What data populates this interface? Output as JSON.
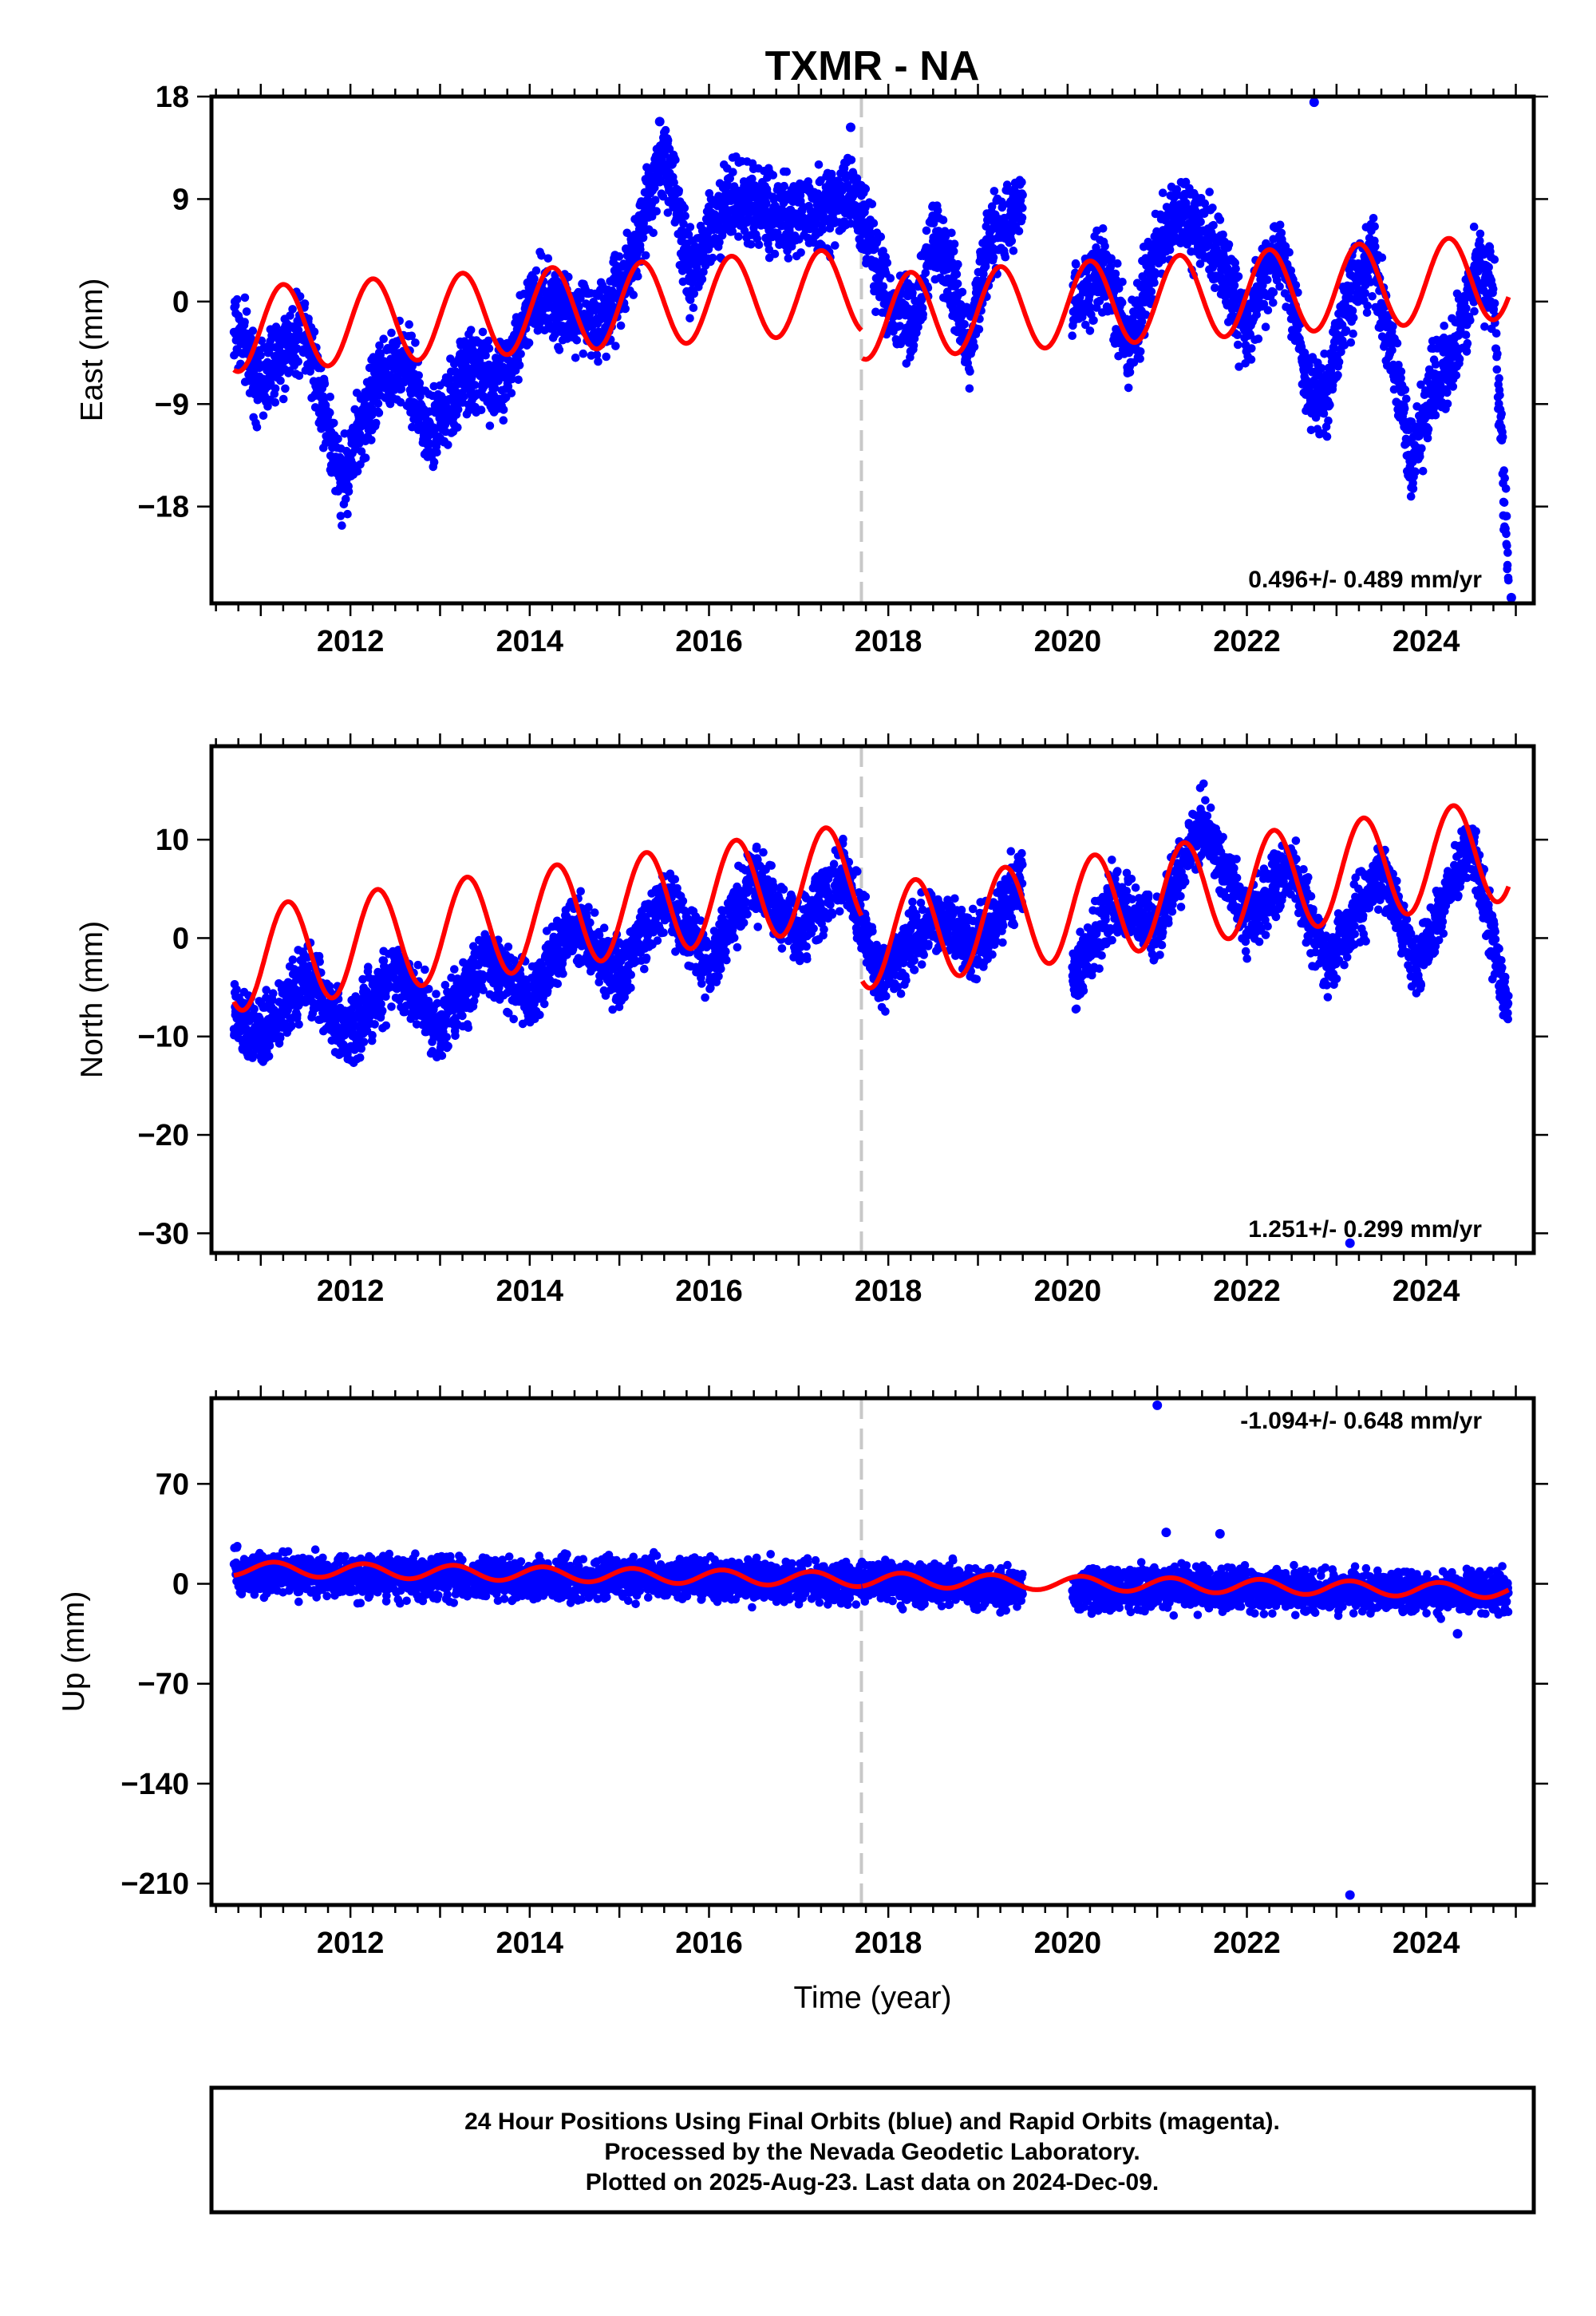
{
  "title": "TXMR - NA",
  "colors": {
    "final_orbits": "#0000ff",
    "model": "#ff0000",
    "event_line": "#c8c8c8",
    "frame": "#000000"
  },
  "event_line_year": 2017.7,
  "chart_data": [
    {
      "type": "scatter",
      "name": "east",
      "title": "",
      "ylabel": "East (mm)",
      "xlim": [
        2010.45,
        2025.2
      ],
      "ylim": [
        -26.5,
        18
      ],
      "yticks": [
        -18,
        -9,
        0,
        9,
        18
      ],
      "yticklabels": [
        "−18",
        "−9",
        "0",
        "9",
        "18"
      ],
      "xticks": [
        2012,
        2014,
        2016,
        2018,
        2020,
        2022,
        2024
      ],
      "xticklabels": [
        "2012",
        "2014",
        "2016",
        "2018",
        "2020",
        "2022",
        "2024"
      ],
      "show_xlabel": false,
      "xlabel": "Time (year)",
      "rate_label": "0.496+/- 0.489 mm/yr",
      "rate_position": "bottom-right",
      "anchors_x": [
        2010.7,
        2011.0,
        2011.5,
        2011.9,
        2012.3,
        2012.6,
        2012.9,
        2013.3,
        2013.7,
        2014.0,
        2014.3,
        2014.8,
        2015.1,
        2015.4,
        2015.5,
        2015.8,
        2016.1,
        2016.5,
        2016.9,
        2017.3,
        2017.6,
        2017.7,
        2018.0,
        2018.3,
        2018.5,
        2018.7,
        2018.9,
        2019.1,
        2019.5,
        2020.1,
        2020.4,
        2020.7,
        2020.9,
        2021.2,
        2021.5,
        2021.7,
        2022.0,
        2022.2,
        2022.4,
        2022.7,
        2022.9,
        2023.1,
        2023.4,
        2023.6,
        2023.85,
        2024.05,
        2024.3,
        2024.55,
        2024.75,
        2024.92
      ],
      "anchors_y": [
        -2,
        -7,
        -2,
        -16,
        -7,
        -5,
        -12,
        -6,
        -7,
        0,
        0,
        -2,
        3,
        11,
        13,
        2,
        8,
        9,
        7,
        8,
        9,
        8,
        0,
        -2,
        6,
        2,
        -4,
        5,
        9,
        0,
        3,
        -4,
        2,
        8,
        6,
        4,
        -3,
        2,
        4,
        -8,
        -8,
        0,
        4,
        -4,
        -15,
        -8,
        -5,
        3,
        1,
        -24
      ],
      "gaps": [
        [
          2019.5,
          2020.05
        ]
      ],
      "noise": 1.7,
      "outliers": [
        [
          2022.75,
          17.5
        ],
        [
          2017.58,
          15.3
        ],
        [
          2015.45,
          15.8
        ],
        [
          2024.95,
          -26
        ]
      ],
      "model": {
        "offset": -1.4,
        "rate": 0.496,
        "t0": 2017.7,
        "amp": 3.7,
        "phase": 2017.25,
        "break_year": 2017.7,
        "break_offset": -2.4
      }
    },
    {
      "type": "scatter",
      "name": "north",
      "title": "",
      "ylabel": "North (mm)",
      "xlim": [
        2010.45,
        2025.2
      ],
      "ylim": [
        -32,
        19.5
      ],
      "yticks": [
        -30,
        -20,
        -10,
        0,
        10
      ],
      "yticklabels": [
        "−30",
        "−20",
        "−10",
        "0",
        "10"
      ],
      "xticks": [
        2012,
        2014,
        2016,
        2018,
        2020,
        2022,
        2024
      ],
      "xticklabels": [
        "2012",
        "2014",
        "2016",
        "2018",
        "2020",
        "2022",
        "2024"
      ],
      "show_xlabel": false,
      "xlabel": "Time (year)",
      "rate_label": "1.251+/- 0.299 mm/yr",
      "rate_position": "bottom-right",
      "anchors_x": [
        2010.7,
        2011.0,
        2011.5,
        2012.0,
        2012.5,
        2013.0,
        2013.5,
        2014.0,
        2014.5,
        2015.0,
        2015.5,
        2016.0,
        2016.5,
        2017.0,
        2017.5,
        2017.9,
        2018.5,
        2019.0,
        2019.45,
        2020.1,
        2020.5,
        2021.0,
        2021.5,
        2022.0,
        2022.5,
        2022.9,
        2023.5,
        2023.9,
        2024.5,
        2024.92
      ],
      "anchors_y": [
        -8,
        -10,
        -4,
        -10,
        -3,
        -9,
        -2,
        -6,
        1,
        -4,
        4,
        -3,
        6,
        0,
        7,
        -4,
        2,
        -1,
        6,
        -4,
        4,
        1,
        12,
        2,
        7,
        -3,
        7,
        -3,
        10,
        -8
      ],
      "gaps": [
        [
          2019.5,
          2020.05
        ]
      ],
      "noise": 1.6,
      "outliers": [
        [
          2023.15,
          -31
        ]
      ],
      "model": {
        "offset": 0.0,
        "rate": 1.251,
        "t0": 2017.7,
        "amp": 5.2,
        "phase": 2017.3,
        "break_year": 2017.7,
        "break_offset": -6.5
      }
    },
    {
      "type": "scatter",
      "name": "up",
      "title": "",
      "ylabel": "Up (mm)",
      "xlim": [
        2010.45,
        2025.2
      ],
      "ylim": [
        -225,
        130
      ],
      "yticks": [
        -210,
        -140,
        -70,
        0,
        70
      ],
      "yticklabels": [
        "−210",
        "−140",
        "−70",
        "0",
        "70"
      ],
      "xticks": [
        2012,
        2014,
        2016,
        2018,
        2020,
        2022,
        2024
      ],
      "xticklabels": [
        "2012",
        "2014",
        "2016",
        "2018",
        "2020",
        "2022",
        "2024"
      ],
      "show_xlabel": true,
      "xlabel": "Time (year)",
      "rate_label": "-1.094+/- 0.648 mm/yr",
      "rate_position": "top-right",
      "anchors_x": [
        2010.7,
        2011.5,
        2012.5,
        2013.5,
        2014.5,
        2015.5,
        2016.5,
        2017.5,
        2018.5,
        2019.45,
        2020.1,
        2021.0,
        2022.0,
        2023.0,
        2024.0,
        2024.92
      ],
      "anchors_y": [
        8,
        6,
        5,
        4,
        3,
        3,
        2,
        1,
        0,
        -4,
        -5,
        -3,
        -3,
        -5,
        -6,
        -5
      ],
      "gaps": [
        [
          2019.5,
          2020.05
        ]
      ],
      "noise": 7.0,
      "outliers": [
        [
          2021.0,
          125
        ],
        [
          2021.1,
          36
        ],
        [
          2021.7,
          35
        ],
        [
          2023.15,
          -218
        ],
        [
          2024.35,
          -35
        ]
      ],
      "model": {
        "offset": 3.0,
        "rate": -1.094,
        "t0": 2017.7,
        "amp": 5.0,
        "phase": 2017.15,
        "break_year": 2017.7,
        "break_offset": 0
      }
    }
  ],
  "footer": {
    "line1": "24 Hour Positions Using Final Orbits (blue) and Rapid Orbits (magenta).",
    "line2": "Processed by the Nevada Geodetic Laboratory.",
    "line3": "Plotted on 2025-Aug-23. Last data on 2024-Dec-09."
  }
}
